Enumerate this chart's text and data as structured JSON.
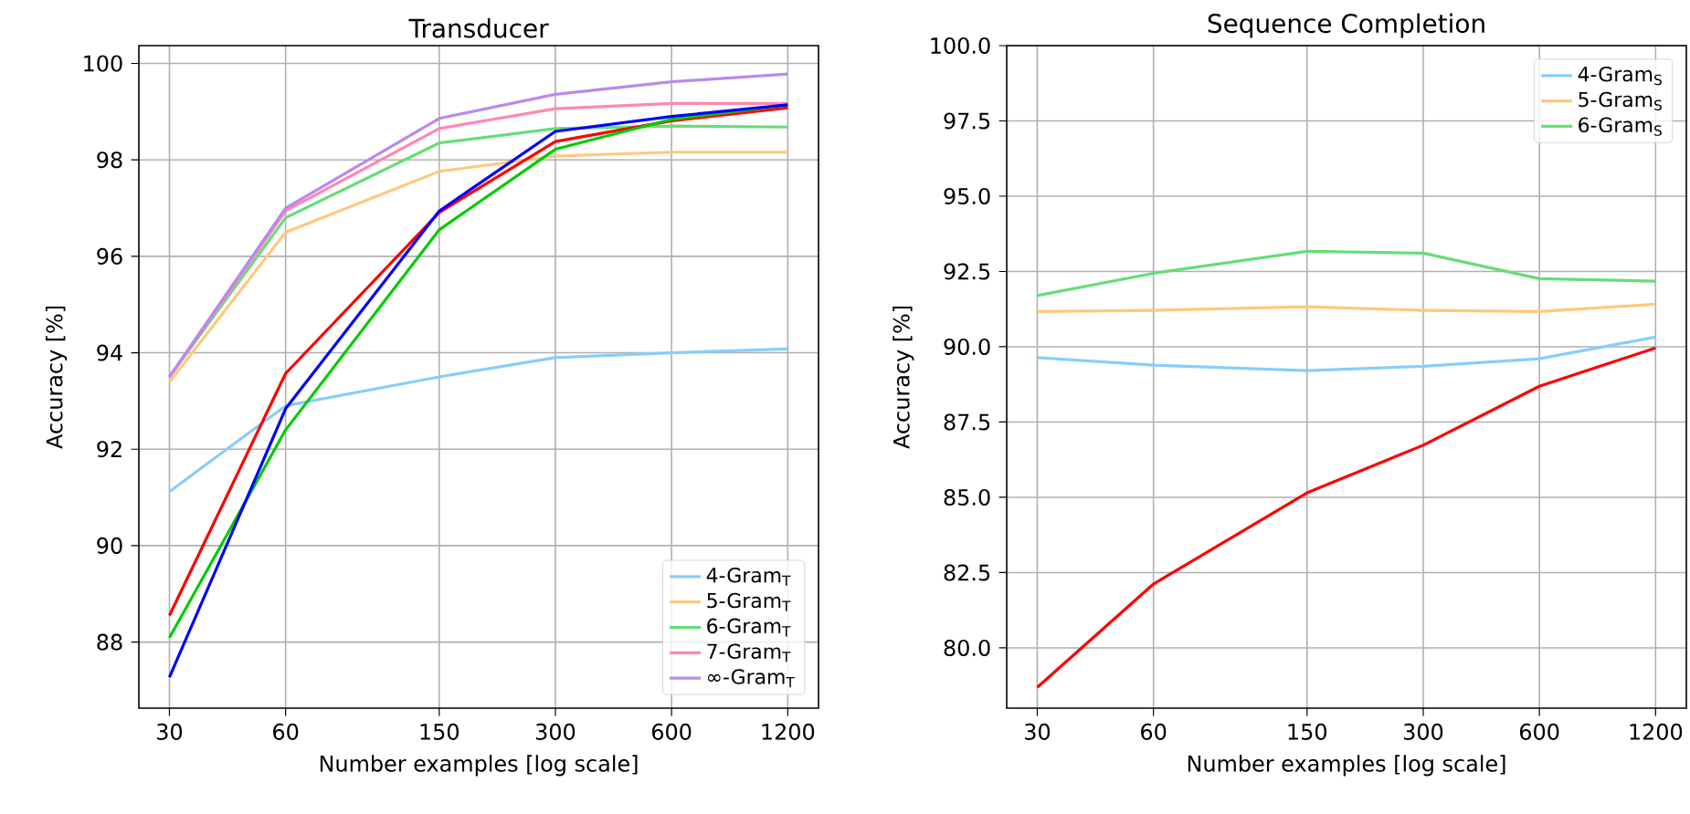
{
  "chart_data": [
    {
      "type": "line",
      "title": "Transducer",
      "xlabel": "Number examples [log scale]",
      "ylabel": "Accuracy [%]",
      "log": "x",
      "grid": true,
      "legend": "bottom right",
      "x": [
        30,
        60,
        150,
        300,
        600,
        1200
      ],
      "xlim": [
        25,
        1442
      ],
      "xticks": [
        30,
        60,
        150,
        300,
        600,
        1200
      ],
      "ylim": [
        86.63,
        100.37
      ],
      "yticks": [
        88,
        90,
        92,
        94,
        96,
        98,
        100
      ],
      "series": [
        {
          "name": "4-Gram$_{T}$",
          "color": "#87cefa",
          "values": [
            91.12,
            92.9,
            93.5,
            93.9,
            94.0,
            94.08
          ]
        },
        {
          "name": "5-Gram$_{T}$",
          "color": "#ffc87c",
          "values": [
            93.39,
            96.5,
            97.76,
            98.08,
            98.16,
            98.16
          ]
        },
        {
          "name": "6-Gram$_{T}$",
          "color": "#66dd77",
          "values": [
            93.5,
            96.8,
            98.35,
            98.65,
            98.7,
            98.68
          ]
        },
        {
          "name": "7-Gram$_{T}$",
          "color": "#ff88b0",
          "values": [
            93.5,
            96.94,
            98.65,
            99.06,
            99.17,
            99.17
          ]
        },
        {
          "name": "∞-Gram$_{T}$",
          "color": "#bb88ee",
          "values": [
            93.5,
            97.0,
            98.86,
            99.36,
            99.62,
            99.78
          ]
        },
        {
          "color": "#ff0000",
          "values": [
            88.55,
            93.57,
            96.91,
            98.38,
            98.81,
            99.08
          ]
        },
        {
          "color": "#00cc00",
          "values": [
            88.09,
            92.4,
            96.55,
            98.22,
            98.84,
            99.14
          ]
        },
        {
          "color": "#0000ff",
          "values": [
            87.27,
            92.84,
            96.94,
            98.59,
            98.9,
            99.14
          ]
        }
      ]
    },
    {
      "type": "line",
      "title": "Sequence Completion",
      "xlabel": "Number examples [log scale]",
      "ylabel": "Accuracy [%]",
      "log": "x",
      "grid": true,
      "legend": "top right",
      "x": [
        30,
        60,
        150,
        300,
        600,
        1200
      ],
      "xlim": [
        25,
        1442
      ],
      "xticks": [
        30,
        60,
        150,
        300,
        600,
        1200
      ],
      "ylim": [
        78,
        100
      ],
      "yticks": [
        {
          "value": 80,
          "label": "80.0"
        },
        {
          "value": 82.5,
          "label": "82.5"
        },
        {
          "value": 85,
          "label": "85.0"
        },
        {
          "value": 87.5,
          "label": "87.5"
        },
        {
          "value": 90,
          "label": "90.0"
        },
        {
          "value": 92.5,
          "label": "92.5"
        },
        {
          "value": 95,
          "label": "95.0"
        },
        {
          "value": 97.5,
          "label": "97.5"
        },
        {
          "value": 100,
          "label": "100.0"
        }
      ],
      "series": [
        {
          "name": "4-Gram$_{S}$",
          "color": "#87cefa",
          "values": [
            89.64,
            89.39,
            89.21,
            89.35,
            89.6,
            90.32
          ]
        },
        {
          "name": "5-Gram$_{S}$",
          "color": "#ffc87c",
          "values": [
            91.17,
            91.21,
            91.33,
            91.21,
            91.17,
            91.41
          ]
        },
        {
          "name": "6-Gram$_{S}$",
          "color": "#66dd77",
          "values": [
            91.7,
            92.44,
            93.17,
            93.11,
            92.26,
            92.18
          ]
        },
        {
          "color": "#ff0000",
          "values": [
            78.69,
            82.12,
            85.15,
            86.73,
            88.69,
            89.96
          ]
        }
      ]
    }
  ]
}
